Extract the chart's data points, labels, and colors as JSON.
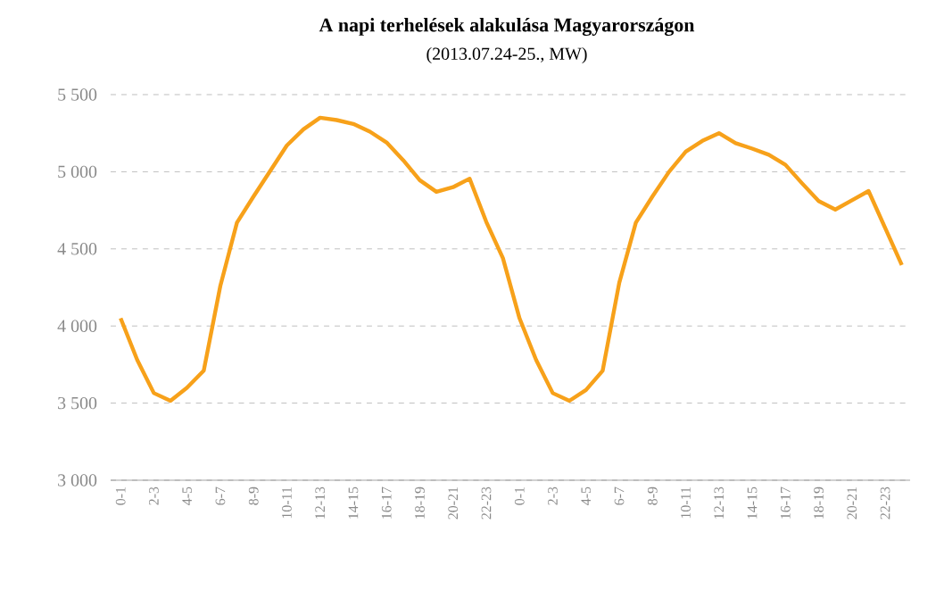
{
  "chart_data": {
    "type": "line",
    "title": "A napi terhelések alakulása Magyarországon",
    "subtitle": "(2013.07.24-25., MW)",
    "categories": [
      "0-1",
      null,
      "2-3",
      null,
      "4-5",
      null,
      "6-7",
      null,
      "8-9",
      null,
      "10-11",
      null,
      "12-13",
      null,
      "14-15",
      null,
      "16-17",
      null,
      "18-19",
      null,
      "20-21",
      null,
      "22-23",
      null,
      "0-1",
      null,
      "2-3",
      null,
      "4-5",
      null,
      "6-7",
      null,
      "8-9",
      null,
      "10-11",
      null,
      "12-13",
      null,
      "14-15",
      null,
      "16-17",
      null,
      "18-19",
      null,
      "20-21",
      null,
      "22-23",
      null
    ],
    "values": [
      4050,
      3780,
      3565,
      3515,
      3600,
      3710,
      4260,
      4670,
      4840,
      5005,
      5170,
      5275,
      5350,
      5335,
      5310,
      5260,
      5190,
      5075,
      4945,
      4870,
      4900,
      4955,
      4675,
      4440,
      4050,
      3780,
      3565,
      3515,
      3585,
      3710,
      4280,
      4670,
      4840,
      5000,
      5130,
      5200,
      5250,
      5185,
      5150,
      5110,
      5045,
      4925,
      4810,
      4755,
      4815,
      4875,
      4635,
      4395
    ],
    "color": "#f7a11a",
    "ylim": [
      3000,
      5500
    ],
    "yticks": [
      {
        "value": 3000,
        "label": "3 000"
      },
      {
        "value": 3500,
        "label": "3 500"
      },
      {
        "value": 4000,
        "label": "4 000"
      },
      {
        "value": 4500,
        "label": "4 500"
      },
      {
        "value": 5000,
        "label": "5 000"
      },
      {
        "value": 5500,
        "label": "5 500"
      }
    ],
    "grid": "y",
    "marker": "none",
    "line_style": "solid"
  }
}
